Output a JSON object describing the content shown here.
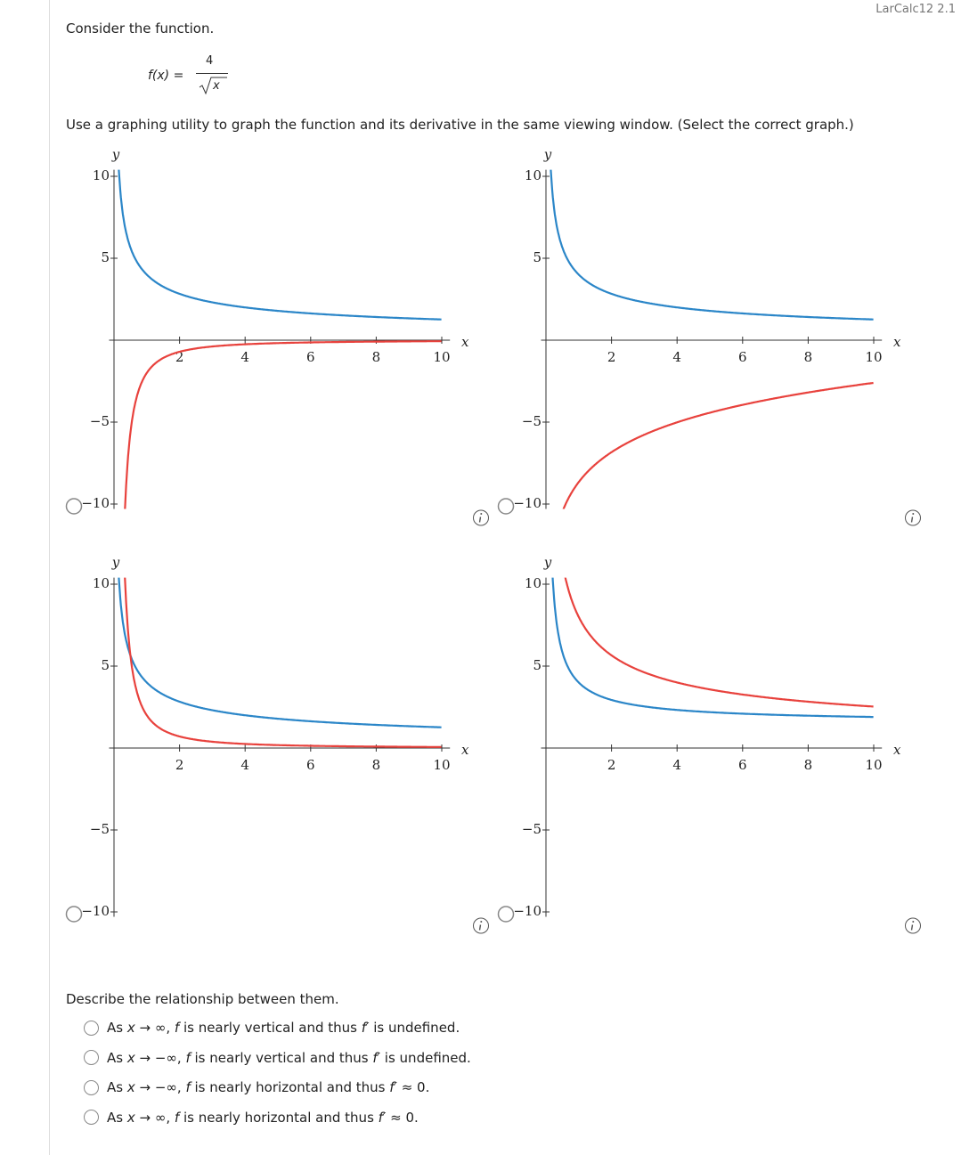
{
  "header": {
    "course": "LarCalc12 2.1"
  },
  "prompt": "Consider the function.",
  "function": {
    "lhs": "f(x) =",
    "numerator": "4",
    "radicand": "x"
  },
  "instruction": "Use a graphing utility to graph the function and its derivative in the same viewing window. (Select the correct graph.)",
  "graphs": [
    {
      "x_label": "x",
      "y_label": "y",
      "xlim": [
        -0.15,
        10.25
      ],
      "ylim": [
        -10.3,
        10.4
      ],
      "xticks": [
        2,
        4,
        6,
        8,
        10
      ],
      "yticks": [
        {
          "value": -10,
          "label": "−10"
        },
        {
          "value": -5,
          "label": "−5"
        },
        5,
        10
      ]
    },
    {
      "x_label": "x",
      "y_label": "y",
      "xlim": [
        -0.15,
        10.25
      ],
      "ylim": [
        -10.3,
        10.4
      ],
      "xticks": [
        2,
        4,
        6,
        8,
        10
      ],
      "yticks": [
        {
          "value": -10,
          "label": "−10"
        },
        {
          "value": -5,
          "label": "−5"
        },
        5,
        10
      ]
    },
    {
      "x_label": "x",
      "y_label": "y",
      "xlim": [
        -0.15,
        10.25
      ],
      "ylim": [
        -10.3,
        10.4
      ],
      "xticks": [
        2,
        4,
        6,
        8,
        10
      ],
      "yticks": [
        {
          "value": -10,
          "label": "−10"
        },
        {
          "value": -5,
          "label": "−5"
        },
        5,
        10
      ]
    },
    {
      "x_label": "x",
      "y_label": "y",
      "xlim": [
        -0.15,
        10.25
      ],
      "ylim": [
        -10.3,
        10.4
      ],
      "xticks": [
        2,
        4,
        6,
        8,
        10
      ],
      "yticks": [
        {
          "value": -10,
          "label": "−10"
        },
        {
          "value": -5,
          "label": "−5"
        },
        5,
        10
      ]
    }
  ],
  "question": "Describe the relationship between them.",
  "options": [
    [
      "As ",
      "x",
      " → ∞, ",
      "f",
      " is nearly vertical and thus ",
      "f′",
      " is undefined."
    ],
    [
      "As ",
      "x",
      " → −∞, ",
      "f",
      " is nearly vertical and thus ",
      "f′",
      " is undefined."
    ],
    [
      "As ",
      "x",
      " → −∞, ",
      "f",
      " is nearly horizontal and thus ",
      "f′",
      " ≈ 0."
    ],
    [
      "As ",
      "x",
      " → ∞, ",
      "f",
      " is nearly horizontal and thus ",
      "f′",
      " ≈ 0."
    ]
  ]
}
